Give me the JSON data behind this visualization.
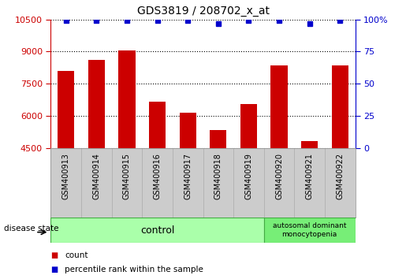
{
  "title": "GDS3819 / 208702_x_at",
  "samples": [
    "GSM400913",
    "GSM400914",
    "GSM400915",
    "GSM400916",
    "GSM400917",
    "GSM400918",
    "GSM400919",
    "GSM400920",
    "GSM400921",
    "GSM400922"
  ],
  "counts": [
    8100,
    8600,
    9050,
    6650,
    6150,
    5350,
    6550,
    8350,
    4800,
    8350
  ],
  "percentile_ranks": [
    99,
    99,
    99,
    99,
    99,
    97,
    99,
    99,
    97,
    99
  ],
  "ylim_left": [
    4500,
    10500
  ],
  "ylim_right": [
    0,
    100
  ],
  "yticks_left": [
    4500,
    6000,
    7500,
    9000,
    10500
  ],
  "yticks_right": [
    0,
    25,
    50,
    75,
    100
  ],
  "ytick_labels_right": [
    "0",
    "25",
    "50",
    "75",
    "100%"
  ],
  "bar_color": "#cc0000",
  "dot_color": "#0000cc",
  "bar_width": 0.55,
  "plot_bg_color": "#ffffff",
  "grid_color": "#000000",
  "control_samples": 7,
  "disease_samples": 3,
  "control_label": "control",
  "disease_label": "autosomal dominant\nmonocytopenia",
  "control_bg": "#aaffaa",
  "disease_bg": "#77ee77",
  "tick_area_bg": "#cccccc",
  "left_axis_color": "#cc0000",
  "right_axis_color": "#0000cc",
  "legend_count_color": "#cc0000",
  "legend_pct_color": "#0000cc",
  "fig_width": 5.15,
  "fig_height": 3.54,
  "dpi": 100
}
